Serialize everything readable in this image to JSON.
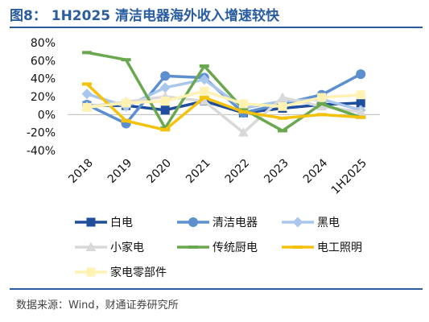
{
  "header": {
    "title": "图8： 1H2025 清洁电器海外收入增速较快"
  },
  "footer": {
    "source": "数据来源：Wind，财通证券研究所"
  },
  "chart_data": {
    "type": "line",
    "title": "",
    "xlabel": "",
    "ylabel": "",
    "x": [
      "2018",
      "2019",
      "2020",
      "2021",
      "2022",
      "2023",
      "2024",
      "1H2025"
    ],
    "ylim": [
      -40,
      80
    ],
    "yticks": [
      "80%",
      "60%",
      "40%",
      "20%",
      "0%",
      "-20%",
      "-40%"
    ],
    "grid": false,
    "legend_position": "bottom",
    "series": [
      {
        "name": "白电",
        "color": "#1f4e9c",
        "marker": "square",
        "values": [
          10,
          10,
          5,
          15,
          2,
          7,
          11,
          13
        ]
      },
      {
        "name": "清洁电器",
        "color": "#5b8fd0",
        "marker": "circle",
        "values": [
          11,
          -10,
          43,
          41,
          2,
          12,
          22,
          45
        ]
      },
      {
        "name": "黑电",
        "color": "#a9c6ec",
        "marker": "diamond",
        "values": [
          23,
          9,
          30,
          39,
          7,
          15,
          17,
          5
        ]
      },
      {
        "name": "小家电",
        "color": "#d9d9d9",
        "marker": "triangle",
        "values": [
          9,
          14,
          20,
          15,
          -20,
          19,
          9,
          3
        ]
      },
      {
        "name": "传统厨电",
        "color": "#6aa84f",
        "marker": "dash",
        "values": [
          69,
          61,
          -15,
          54,
          6,
          -18,
          12,
          -3
        ]
      },
      {
        "name": "电工照明",
        "color": "#f4c20d",
        "marker": "dash",
        "values": [
          34,
          -7,
          -17,
          19,
          3,
          -4,
          0,
          -3
        ]
      },
      {
        "name": "家电零部件",
        "color": "#fff2b2",
        "marker": "square",
        "values": [
          8,
          13,
          15,
          26,
          12,
          9,
          19,
          22
        ]
      }
    ]
  }
}
